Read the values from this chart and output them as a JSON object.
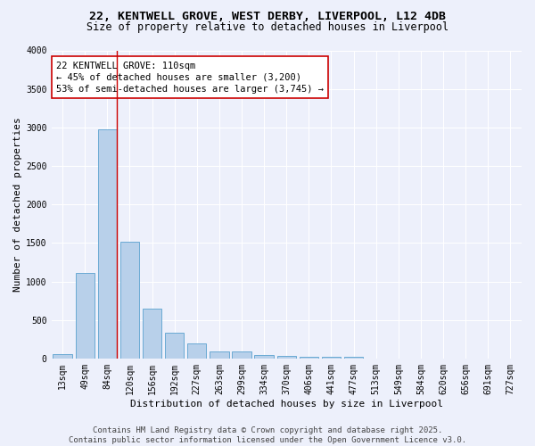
{
  "title_line1": "22, KENTWELL GROVE, WEST DERBY, LIVERPOOL, L12 4DB",
  "title_line2": "Size of property relative to detached houses in Liverpool",
  "xlabel": "Distribution of detached houses by size in Liverpool",
  "ylabel": "Number of detached properties",
  "categories": [
    "13sqm",
    "49sqm",
    "84sqm",
    "120sqm",
    "156sqm",
    "192sqm",
    "227sqm",
    "263sqm",
    "299sqm",
    "334sqm",
    "370sqm",
    "406sqm",
    "441sqm",
    "477sqm",
    "513sqm",
    "549sqm",
    "584sqm",
    "620sqm",
    "656sqm",
    "691sqm",
    "727sqm"
  ],
  "values": [
    60,
    1110,
    2970,
    1520,
    650,
    335,
    195,
    95,
    85,
    50,
    30,
    25,
    25,
    20,
    0,
    0,
    0,
    0,
    0,
    0,
    0
  ],
  "bar_color": "#b8d0ea",
  "bar_edge_color": "#6aaad4",
  "vline_x_index": 2.42,
  "vline_color": "#cc0000",
  "annotation_text": "22 KENTWELL GROVE: 110sqm\n← 45% of detached houses are smaller (3,200)\n53% of semi-detached houses are larger (3,745) →",
  "annotation_box_color": "#ffffff",
  "annotation_box_edge": "#cc0000",
  "ylim": [
    0,
    4000
  ],
  "yticks": [
    0,
    500,
    1000,
    1500,
    2000,
    2500,
    3000,
    3500,
    4000
  ],
  "background_color": "#edf0fb",
  "grid_color": "#ffffff",
  "footer": "Contains HM Land Registry data © Crown copyright and database right 2025.\nContains public sector information licensed under the Open Government Licence v3.0.",
  "title_fontsize": 9.5,
  "subtitle_fontsize": 8.5,
  "axis_label_fontsize": 8,
  "tick_fontsize": 7,
  "annotation_fontsize": 7.5,
  "footer_fontsize": 6.5
}
